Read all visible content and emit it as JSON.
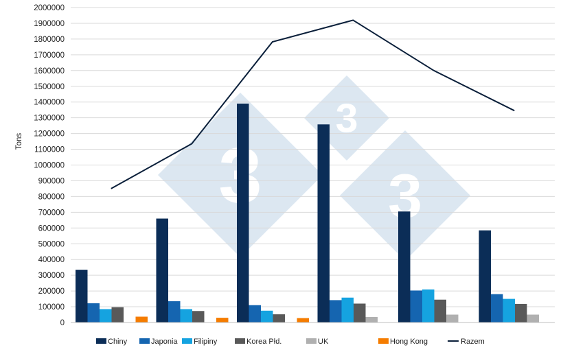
{
  "chart_data": {
    "type": "bar",
    "title": "",
    "xlabel": "",
    "ylabel": "Tons",
    "ylim": [
      0,
      2000000
    ],
    "ytick_step": 100000,
    "yticks": [
      "0",
      "100000",
      "200000",
      "300000",
      "400000",
      "500000",
      "600000",
      "700000",
      "800000",
      "900000",
      "1000000",
      "1100000",
      "1200000",
      "1300000",
      "1400000",
      "1500000",
      "1600000",
      "1700000",
      "1800000",
      "1900000",
      "2000000"
    ],
    "grid": true,
    "legend_position": "bottom",
    "num_groups": 6,
    "categories": [
      "",
      "",
      "",
      "",
      "",
      ""
    ],
    "series": [
      {
        "name": "Chiny",
        "kind": "bar",
        "color": "#0b2d57",
        "values": [
          335000,
          660000,
          1390000,
          1258000,
          705000,
          585000
        ]
      },
      {
        "name": "Japonia",
        "kind": "bar",
        "color": "#1565b0",
        "values": [
          122000,
          135000,
          110000,
          142000,
          203000,
          180000
        ]
      },
      {
        "name": "Filipiny",
        "kind": "bar",
        "color": "#15a3e0",
        "values": [
          85000,
          85000,
          75000,
          158000,
          210000,
          150000
        ]
      },
      {
        "name": "Korea Płd.",
        "kind": "bar",
        "color": "#595959",
        "values": [
          97000,
          73000,
          52000,
          120000,
          145000,
          118000
        ]
      },
      {
        "name": "UK",
        "kind": "bar",
        "color": "#b0b0b0",
        "values": [
          0,
          0,
          0,
          35000,
          50000,
          50000
        ]
      },
      {
        "name": "Hong Kong",
        "kind": "bar",
        "color": "#f57c00",
        "values": [
          37000,
          30000,
          28000,
          0,
          0,
          0
        ]
      },
      {
        "name": "Razem",
        "kind": "line",
        "color": "#0a1f3a",
        "values": [
          850000,
          1135000,
          1782000,
          1920000,
          1600000,
          1345000
        ]
      }
    ]
  }
}
